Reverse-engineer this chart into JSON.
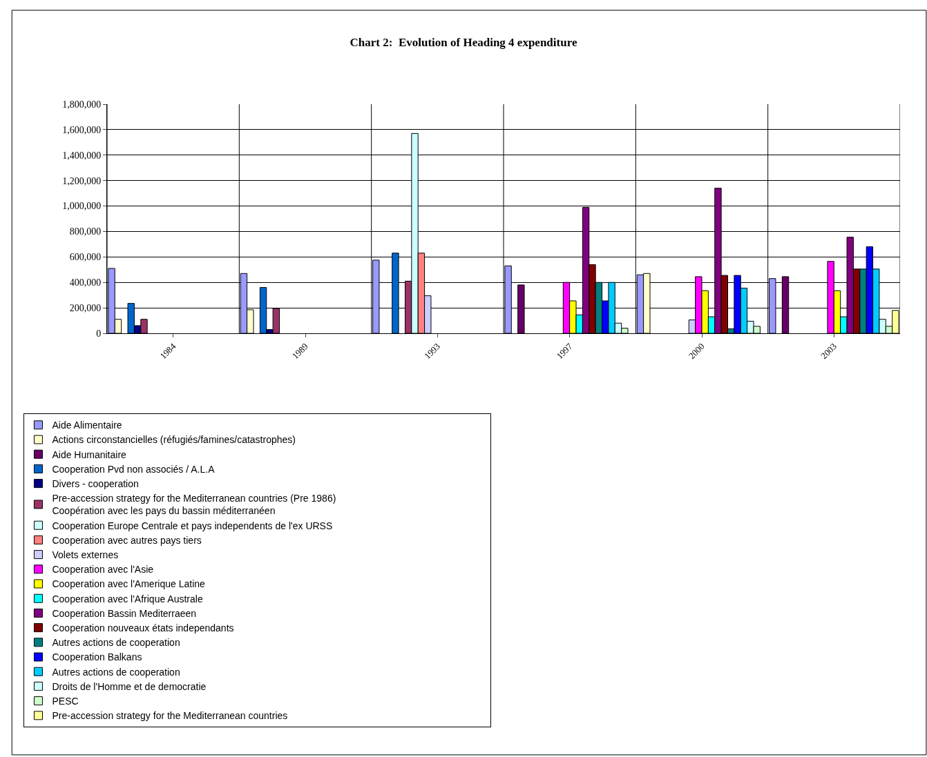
{
  "chart_data": {
    "type": "bar",
    "title": "Chart 2:  Evolution of Heading 4 expenditure",
    "categories": [
      "1984",
      "1989",
      "1993",
      "1997",
      "2000",
      "2003"
    ],
    "ylim": [
      0,
      1800000
    ],
    "yticks": [
      0,
      {
        "value": 200000,
        "label": "200,000"
      },
      {
        "value": 400000,
        "label": "400,000"
      },
      {
        "value": 600000,
        "label": "600,000"
      },
      {
        "value": 800000,
        "label": "800,000"
      },
      {
        "value": 1000000,
        "label": "1,000,000"
      },
      {
        "value": 1200000,
        "label": "1,200,000"
      },
      {
        "value": 1400000,
        "label": "1,400,000"
      },
      {
        "value": 1600000,
        "label": "1,600,000"
      },
      {
        "value": 1800000,
        "label": "1,800,000"
      }
    ],
    "grid": true,
    "legend": "bottom",
    "series": [
      {
        "name": "Aide Alimentaire",
        "color": "#9999ff",
        "values": [
          510000,
          470000,
          575000,
          530000,
          460000,
          430000
        ]
      },
      {
        "name": "Actions circonstancielles (réfugiés/famines/catastrophes)",
        "color": "#ffffcc",
        "values": [
          110000,
          185000,
          null,
          null,
          470000,
          null
        ]
      },
      {
        "name": "Aide Humanitaire",
        "color": "#660066",
        "values": [
          null,
          null,
          null,
          380000,
          null,
          445000
        ]
      },
      {
        "name": "Cooperation Pvd non associés / A.L.A",
        "color": "#0066cc",
        "values": [
          235000,
          360000,
          630000,
          null,
          null,
          null
        ]
      },
      {
        "name": "Divers - cooperation",
        "color": "#000080",
        "values": [
          60000,
          30000,
          null,
          null,
          null,
          null
        ]
      },
      {
        "name": "Pre-accession strategy for the Mediterranean countries (Pre 1986)\nCoopération avec les pays du bassin méditerranéen",
        "color": "#993366",
        "values": [
          110000,
          195000,
          410000,
          null,
          null,
          null
        ]
      },
      {
        "name": "Cooperation Europe Centrale et pays independents de l'ex URSS",
        "color": "#ccffff",
        "values": [
          null,
          null,
          1570000,
          null,
          null,
          null
        ]
      },
      {
        "name": "Cooperation avec autres pays tiers",
        "color": "#ff8080",
        "values": [
          null,
          null,
          630000,
          null,
          null,
          null
        ]
      },
      {
        "name": "Volets externes",
        "color": "#ccccff",
        "values": [
          null,
          null,
          295000,
          null,
          105000,
          null
        ]
      },
      {
        "name": "Cooperation avec l'Asie",
        "color": "#ff00ff",
        "values": [
          null,
          null,
          null,
          400000,
          445000,
          565000
        ]
      },
      {
        "name": "Cooperation avec l'Amerique Latine",
        "color": "#ffff00",
        "values": [
          null,
          null,
          null,
          255000,
          335000,
          335000
        ]
      },
      {
        "name": "Cooperation avec l'Afrique Australe",
        "color": "#00ffff",
        "values": [
          null,
          null,
          null,
          145000,
          130000,
          130000
        ]
      },
      {
        "name": "Cooperation Bassin Mediterraeen",
        "color": "#800080",
        "values": [
          null,
          null,
          null,
          990000,
          1140000,
          755000
        ]
      },
      {
        "name": "Cooperation nouveaux états independants",
        "color": "#800000",
        "values": [
          null,
          null,
          null,
          540000,
          455000,
          505000
        ]
      },
      {
        "name": "Autres actions de cooperation",
        "color": "#008080",
        "values": [
          null,
          null,
          null,
          400000,
          35000,
          505000
        ]
      },
      {
        "name": "Cooperation Balkans",
        "color": "#0000ff",
        "values": [
          null,
          null,
          null,
          255000,
          455000,
          680000
        ]
      },
      {
        "name": "Autres actions de cooperation",
        "color": "#00ccff",
        "values": [
          null,
          null,
          null,
          400000,
          355000,
          505000
        ]
      },
      {
        "name": "Droits de l'Homme et de democratie",
        "color": "#ccffff",
        "values": [
          null,
          null,
          null,
          80000,
          95000,
          110000
        ]
      },
      {
        "name": "PESC",
        "color": "#ccffcc",
        "values": [
          null,
          null,
          null,
          40000,
          55000,
          55000
        ]
      },
      {
        "name": "Pre-accession strategy for the Mediterranean countries",
        "color": "#ffff99",
        "values": [
          null,
          null,
          null,
          null,
          null,
          180000
        ]
      }
    ]
  }
}
